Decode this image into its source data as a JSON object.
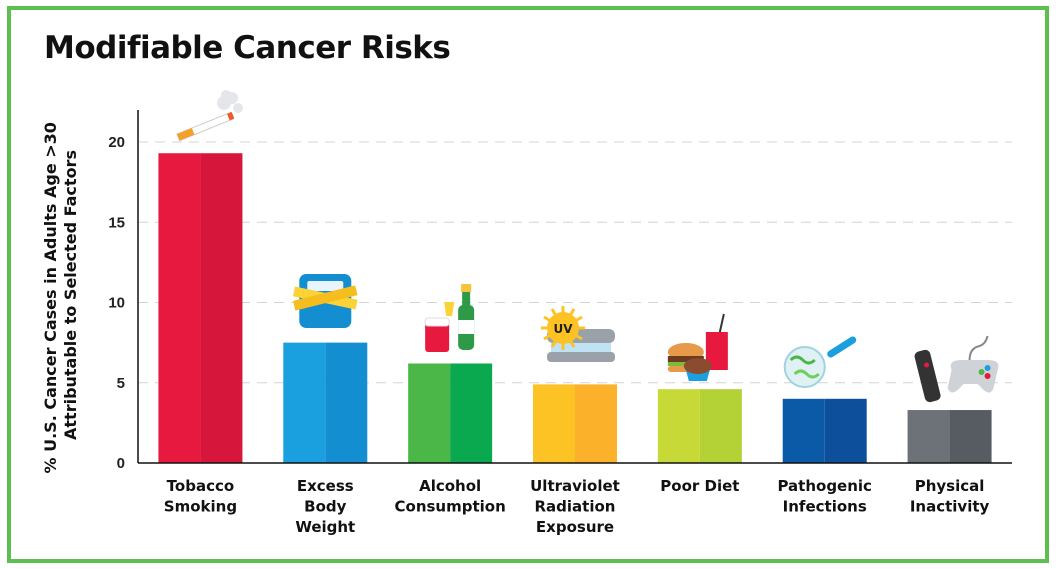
{
  "colors": {
    "frame_border": "#5cbf4f",
    "bars": [
      [
        "#e8193f",
        "#d6163a"
      ],
      [
        "#1a9fdf",
        "#138ed0"
      ],
      [
        "#4cb749",
        "#0aa84f"
      ],
      [
        "#fdc325",
        "#fbb22a"
      ],
      [
        "#c7d936",
        "#b4d136"
      ],
      [
        "#0a5aa8",
        "#0e4f9c"
      ],
      [
        "#6d7278",
        "#575c63"
      ]
    ]
  },
  "chart_data": {
    "type": "bar",
    "title": "Modifiable Cancer Risks",
    "ylabel": [
      "% U.S. Cancer Cases in Adults Age >30",
      "Attributable to Selected Factors"
    ],
    "xlabel": "",
    "ylim": [
      0,
      22
    ],
    "yticks": [
      "0",
      "5",
      "10",
      "15",
      "20"
    ],
    "grid": true,
    "categories": [
      [
        "Tobacco",
        "Smoking"
      ],
      [
        "Excess",
        "Body",
        "Weight"
      ],
      [
        "Alcohol",
        "Consumption"
      ],
      [
        "Ultraviolet",
        "Radiation",
        "Exposure"
      ],
      [
        "Poor Diet"
      ],
      [
        "Pathogenic",
        "Infections"
      ],
      [
        "Physical",
        "Inactivity"
      ]
    ],
    "values": [
      19.3,
      7.5,
      6.2,
      4.9,
      4.6,
      4.0,
      3.3
    ],
    "icons": [
      "cigarette-icon",
      "scale-icon",
      "drinks-icon",
      "tanning-bed-icon",
      "fast-food-icon",
      "microbe-icon",
      "game-controller-icon"
    ],
    "icon_text": {
      "uv": "UV"
    }
  }
}
